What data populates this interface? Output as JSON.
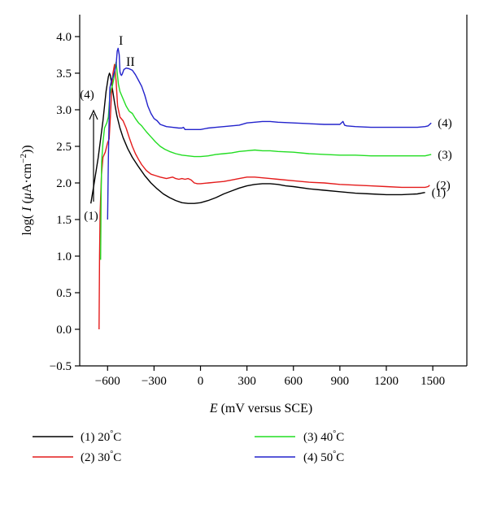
{
  "chart_data": {
    "type": "line",
    "xlabel": "E (mV versus SCE)",
    "ylabel": "log( I (μA·cm⁻²))",
    "xlim": [
      -780,
      1720
    ],
    "ylim": [
      -0.5,
      4.3
    ],
    "xticks": [
      -600,
      -300,
      0,
      300,
      600,
      900,
      1200,
      1500
    ],
    "xtick_labels": [
      "−600",
      "−300",
      "0",
      "300",
      "600",
      "900",
      "1200",
      "1500"
    ],
    "yticks": [
      -0.5,
      0.0,
      0.5,
      1.0,
      1.5,
      2.0,
      2.5,
      3.0,
      3.5,
      4.0
    ],
    "ytick_labels": [
      "−0.5",
      "0.0",
      "0.5",
      "1.0",
      "1.5",
      "2.0",
      "2.5",
      "3.0",
      "3.5",
      "4.0"
    ],
    "grid": false,
    "legend_position": "bottom",
    "series": [
      {
        "name": "(1) 20 °C",
        "curve_label": "(1)",
        "color": "#000000",
        "x": [
          -708,
          -690,
          -660,
          -630,
          -610,
          -595,
          -588,
          -582,
          -570,
          -555,
          -540,
          -520,
          -500,
          -470,
          -440,
          -400,
          -360,
          -320,
          -280,
          -240,
          -200,
          -160,
          -120,
          -80,
          -40,
          0,
          50,
          100,
          150,
          200,
          250,
          300,
          350,
          400,
          450,
          500,
          550,
          600,
          700,
          800,
          900,
          1000,
          1100,
          1200,
          1300,
          1400,
          1450
        ],
        "y": [
          1.72,
          1.95,
          2.35,
          2.85,
          3.25,
          3.45,
          3.5,
          3.47,
          3.3,
          3.1,
          2.92,
          2.75,
          2.62,
          2.47,
          2.35,
          2.22,
          2.1,
          2.0,
          1.92,
          1.85,
          1.8,
          1.76,
          1.73,
          1.72,
          1.72,
          1.73,
          1.76,
          1.8,
          1.85,
          1.89,
          1.93,
          1.96,
          1.98,
          1.99,
          1.99,
          1.98,
          1.96,
          1.95,
          1.92,
          1.9,
          1.88,
          1.86,
          1.85,
          1.84,
          1.84,
          1.85,
          1.87
        ]
      },
      {
        "name": "(2) 30 °C",
        "curve_label": "(2)",
        "color": "#e41b1b",
        "x": [
          -655,
          -652,
          -648,
          -640,
          -630,
          -615,
          -600,
          -590,
          -582,
          -575,
          -565,
          -555,
          -545,
          -535,
          -520,
          -500,
          -480,
          -460,
          -440,
          -420,
          -400,
          -380,
          -350,
          -320,
          -290,
          -260,
          -240,
          -220,
          -200,
          -180,
          -160,
          -140,
          -120,
          -100,
          -80,
          -60,
          -40,
          -20,
          0,
          50,
          100,
          150,
          200,
          250,
          300,
          350,
          400,
          450,
          500,
          600,
          700,
          800,
          900,
          1000,
          1100,
          1200,
          1300,
          1400,
          1450,
          1470,
          1480
        ],
        "y": [
          0.0,
          1.0,
          1.6,
          2.1,
          2.35,
          2.42,
          2.55,
          2.6,
          2.9,
          3.2,
          3.5,
          3.62,
          3.4,
          3.05,
          2.9,
          2.85,
          2.75,
          2.62,
          2.5,
          2.4,
          2.32,
          2.25,
          2.17,
          2.12,
          2.1,
          2.08,
          2.07,
          2.06,
          2.07,
          2.08,
          2.06,
          2.05,
          2.06,
          2.05,
          2.06,
          2.04,
          2.0,
          1.99,
          1.99,
          2.0,
          2.01,
          2.02,
          2.04,
          2.06,
          2.08,
          2.08,
          2.07,
          2.06,
          2.05,
          2.03,
          2.01,
          2.0,
          1.98,
          1.97,
          1.96,
          1.95,
          1.94,
          1.94,
          1.94,
          1.95,
          1.97
        ]
      },
      {
        "name": "(3) 40 °C",
        "curve_label": "(3)",
        "color": "#22dd22",
        "x": [
          -645,
          -642,
          -638,
          -630,
          -620,
          -605,
          -595,
          -585,
          -578,
          -570,
          -560,
          -550,
          -545,
          -540,
          -530,
          -520,
          -500,
          -480,
          -460,
          -440,
          -420,
          -400,
          -380,
          -350,
          -320,
          -290,
          -260,
          -230,
          -200,
          -160,
          -120,
          -80,
          -40,
          0,
          50,
          100,
          150,
          200,
          250,
          300,
          350,
          400,
          450,
          500,
          600,
          700,
          800,
          900,
          1000,
          1100,
          1200,
          1300,
          1400,
          1450,
          1470,
          1490
        ],
        "y": [
          0.95,
          1.8,
          2.3,
          2.55,
          2.75,
          2.82,
          2.9,
          3.2,
          3.28,
          3.32,
          3.42,
          3.58,
          3.65,
          3.55,
          3.35,
          3.25,
          3.15,
          3.05,
          2.98,
          2.95,
          2.88,
          2.82,
          2.78,
          2.7,
          2.63,
          2.56,
          2.5,
          2.46,
          2.43,
          2.4,
          2.38,
          2.37,
          2.36,
          2.36,
          2.37,
          2.39,
          2.4,
          2.41,
          2.43,
          2.44,
          2.45,
          2.44,
          2.44,
          2.43,
          2.42,
          2.4,
          2.39,
          2.38,
          2.38,
          2.37,
          2.37,
          2.37,
          2.37,
          2.37,
          2.38,
          2.39
        ]
      },
      {
        "name": "(4) 50 °C",
        "curve_label": "(4)",
        "color": "#2222cc",
        "x": [
          -600,
          -595,
          -590,
          -585,
          -575,
          -565,
          -555,
          -545,
          -538,
          -532,
          -525,
          -520,
          -515,
          -510,
          -505,
          -495,
          -480,
          -460,
          -440,
          -420,
          -400,
          -380,
          -360,
          -340,
          -320,
          -300,
          -280,
          -260,
          -220,
          -180,
          -140,
          -120,
          -110,
          -100,
          -80,
          -40,
          0,
          50,
          100,
          150,
          200,
          250,
          300,
          350,
          400,
          450,
          500,
          600,
          700,
          800,
          900,
          920,
          930,
          945,
          1000,
          1100,
          1200,
          1300,
          1400,
          1450,
          1470,
          1490
        ],
        "y": [
          1.5,
          2.3,
          2.9,
          3.3,
          3.4,
          3.45,
          3.52,
          3.6,
          3.8,
          3.84,
          3.75,
          3.52,
          3.48,
          3.47,
          3.49,
          3.55,
          3.57,
          3.56,
          3.54,
          3.48,
          3.4,
          3.32,
          3.2,
          3.05,
          2.95,
          2.88,
          2.85,
          2.8,
          2.77,
          2.76,
          2.75,
          2.75,
          2.76,
          2.73,
          2.73,
          2.73,
          2.73,
          2.75,
          2.76,
          2.77,
          2.78,
          2.79,
          2.82,
          2.83,
          2.84,
          2.84,
          2.83,
          2.82,
          2.81,
          2.8,
          2.8,
          2.84,
          2.79,
          2.78,
          2.77,
          2.76,
          2.76,
          2.76,
          2.76,
          2.77,
          2.78,
          2.82
        ]
      }
    ],
    "annotations": {
      "peak_1": "I",
      "peak_2": "II",
      "arrow_from": "(1)",
      "arrow_to": "(4)"
    },
    "legend": [
      {
        "prefix": "(1) 20",
        "unit": "C",
        "color": "#000000"
      },
      {
        "prefix": "(2) 30",
        "unit": "C",
        "color": "#e41b1b"
      },
      {
        "prefix": "(3) 40",
        "unit": "C",
        "color": "#22dd22"
      },
      {
        "prefix": "(4) 50",
        "unit": "C",
        "color": "#2222cc"
      }
    ]
  }
}
